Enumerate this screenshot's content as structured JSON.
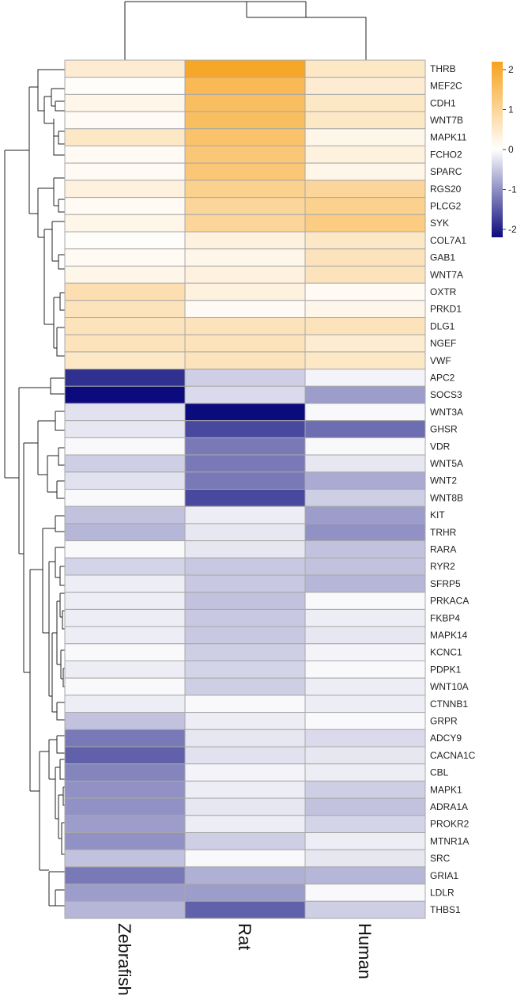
{
  "chart_data": {
    "type": "heatmap",
    "columns": [
      "Zebrafish",
      "Rat",
      "Human"
    ],
    "rows": [
      "THRB",
      "MEF2C",
      "CDH1",
      "WNT7B",
      "MAPK11",
      "FCHO2",
      "SPARC",
      "RGS20",
      "PLCG2",
      "SYK",
      "COL7A1",
      "GAB1",
      "WNT7A",
      "OXTR",
      "PRKD1",
      "DLG1",
      "NGEF",
      "VWF",
      "APC2",
      "SOCS3",
      "WNT3A",
      "GHSR",
      "VDR",
      "WNT5A",
      "WNT2",
      "WNT8B",
      "KIT",
      "TRHR",
      "RARA",
      "RYR2",
      "SFRP5",
      "PRKACA",
      "FKBP4",
      "MAPK14",
      "KCNC1",
      "PDPK1",
      "WNT10A",
      "CTNNB1",
      "GRPR",
      "ADCY9",
      "CACNA1C",
      "CBL",
      "MAPK1",
      "ADRA1A",
      "PROKR2",
      "MTNR1A",
      "SRC",
      "GRIA1",
      "LDLR",
      "THBS1"
    ],
    "values": [
      [
        0.4,
        1.9,
        0.5
      ],
      [
        0.05,
        1.5,
        0.4
      ],
      [
        0.2,
        1.4,
        0.5
      ],
      [
        0.1,
        1.4,
        0.5
      ],
      [
        0.5,
        1.3,
        0.2
      ],
      [
        0.1,
        1.2,
        0.3
      ],
      [
        0.1,
        1.2,
        0.2
      ],
      [
        0.3,
        1.0,
        0.9
      ],
      [
        0.1,
        0.9,
        1.0
      ],
      [
        0.2,
        0.9,
        1.1
      ],
      [
        0.05,
        0.3,
        0.5
      ],
      [
        0.1,
        0.2,
        0.6
      ],
      [
        0.2,
        0.3,
        0.6
      ],
      [
        0.7,
        0.3,
        0.1
      ],
      [
        0.6,
        0.1,
        0.2
      ],
      [
        0.6,
        0.6,
        0.6
      ],
      [
        0.6,
        0.6,
        0.4
      ],
      [
        0.5,
        0.6,
        0.5
      ],
      [
        -1.7,
        -0.4,
        -0.1
      ],
      [
        -2.0,
        -0.3,
        -0.8
      ],
      [
        -0.25,
        -2.0,
        -0.05
      ],
      [
        -0.2,
        -1.5,
        -1.2
      ],
      [
        -0.05,
        -1.1,
        -0.05
      ],
      [
        -0.4,
        -1.1,
        -0.2
      ],
      [
        -0.25,
        -1.1,
        -0.7
      ],
      [
        -0.05,
        -1.5,
        -0.4
      ],
      [
        -0.5,
        -0.15,
        -0.8
      ],
      [
        -0.6,
        -0.2,
        -0.9
      ],
      [
        -0.05,
        -0.2,
        -0.5
      ],
      [
        -0.35,
        -0.45,
        -0.5
      ],
      [
        -0.15,
        -0.45,
        -0.6
      ],
      [
        -0.15,
        -0.5,
        -0.05
      ],
      [
        -0.15,
        -0.45,
        -0.15
      ],
      [
        -0.15,
        -0.45,
        -0.2
      ],
      [
        -0.05,
        -0.4,
        -0.1
      ],
      [
        -0.15,
        -0.35,
        -0.05
      ],
      [
        -0.05,
        -0.4,
        -0.15
      ],
      [
        -0.15,
        -0.05,
        -0.15
      ],
      [
        -0.5,
        -0.15,
        -0.05
      ],
      [
        -1.1,
        -0.2,
        -0.3
      ],
      [
        -1.3,
        -0.25,
        -0.2
      ],
      [
        -1.0,
        -0.1,
        -0.15
      ],
      [
        -0.9,
        -0.15,
        -0.4
      ],
      [
        -0.9,
        -0.2,
        -0.5
      ],
      [
        -0.8,
        -0.15,
        -0.35
      ],
      [
        -0.9,
        -0.4,
        -0.15
      ],
      [
        -0.5,
        -0.05,
        -0.2
      ],
      [
        -1.1,
        -0.65,
        -0.6
      ],
      [
        -0.8,
        -0.8,
        -0.05
      ],
      [
        -0.6,
        -1.3,
        -0.4
      ]
    ],
    "color_scale": {
      "min": -2,
      "mid": 0,
      "max": 2,
      "low_color": "#0b0b7d",
      "mid_color": "#ffffff",
      "high_color": "#f7a21c"
    },
    "legend": {
      "ticks": [
        "2",
        "1",
        "0",
        "-1",
        "-2"
      ],
      "position": "top-right"
    },
    "cell_border_color": "#a8a8a8",
    "dendrogram_rows": true,
    "dendrogram_cols": true
  }
}
